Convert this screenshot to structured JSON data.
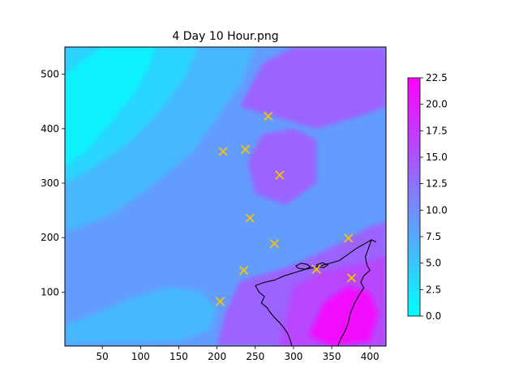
{
  "chart_data": {
    "type": "heatmap",
    "title": "4 Day 10 Hour.png",
    "xlabel": "",
    "ylabel": "",
    "xlim": [
      1,
      421
    ],
    "ylim": [
      1,
      550
    ],
    "x_ticks": [
      50,
      100,
      150,
      200,
      250,
      300,
      350,
      400
    ],
    "y_ticks": [
      100,
      200,
      300,
      400,
      500
    ],
    "colorbar": {
      "min": 0,
      "max": 22.5,
      "ticks": [
        0.0,
        2.5,
        5.0,
        7.5,
        10.0,
        12.5,
        15.0,
        17.5,
        20.0,
        22.5
      ],
      "tick_labels": [
        "0.0",
        "2.5",
        "5.0",
        "7.5",
        "10.0",
        "12.5",
        "15.0",
        "17.5",
        "20.0",
        "22.5"
      ],
      "colormap": "cool",
      "color_low": "#00ffff",
      "color_high": "#ff00ff"
    },
    "markers": {
      "symbol": "x",
      "color": "#f5c400",
      "points": [
        {
          "x": 267,
          "y": 423
        },
        {
          "x": 208,
          "y": 358
        },
        {
          "x": 237,
          "y": 362
        },
        {
          "x": 282,
          "y": 315
        },
        {
          "x": 243,
          "y": 236
        },
        {
          "x": 275,
          "y": 189
        },
        {
          "x": 372,
          "y": 199
        },
        {
          "x": 235,
          "y": 140
        },
        {
          "x": 330,
          "y": 142
        },
        {
          "x": 376,
          "y": 126
        },
        {
          "x": 204,
          "y": 83
        }
      ]
    },
    "field_regions": [
      {
        "value": 9.5,
        "polygon": [
          [
            1,
            1
          ],
          [
            421,
            1
          ],
          [
            421,
            550
          ],
          [
            1,
            550
          ]
        ]
      },
      {
        "value": 6.5,
        "polygon": [
          [
            1,
            210
          ],
          [
            60,
            240
          ],
          [
            120,
            300
          ],
          [
            170,
            360
          ],
          [
            200,
            420
          ],
          [
            230,
            480
          ],
          [
            250,
            550
          ],
          [
            1,
            550
          ]
        ]
      },
      {
        "value": 3.5,
        "polygon": [
          [
            1,
            300
          ],
          [
            40,
            330
          ],
          [
            90,
            380
          ],
          [
            130,
            440
          ],
          [
            160,
            500
          ],
          [
            175,
            550
          ],
          [
            1,
            550
          ]
        ]
      },
      {
        "value": 1.2,
        "polygon": [
          [
            1,
            330
          ],
          [
            30,
            360
          ],
          [
            60,
            410
          ],
          [
            90,
            460
          ],
          [
            110,
            510
          ],
          [
            120,
            550
          ],
          [
            50,
            550
          ],
          [
            1,
            500
          ]
        ]
      },
      {
        "value": 6.8,
        "polygon": [
          [
            1,
            40
          ],
          [
            40,
            60
          ],
          [
            90,
            90
          ],
          [
            140,
            110
          ],
          [
            180,
            100
          ],
          [
            200,
            70
          ],
          [
            190,
            30
          ],
          [
            150,
            10
          ],
          [
            1,
            5
          ]
        ]
      },
      {
        "value": 13.0,
        "polygon": [
          [
            230,
            440
          ],
          [
            280,
            420
          ],
          [
            330,
            400
          ],
          [
            380,
            420
          ],
          [
            421,
            440
          ],
          [
            421,
            550
          ],
          [
            300,
            550
          ],
          [
            260,
            520
          ]
        ]
      },
      {
        "value": 13.5,
        "polygon": [
          [
            250,
            280
          ],
          [
            290,
            260
          ],
          [
            330,
            300
          ],
          [
            330,
            380
          ],
          [
            300,
            400
          ],
          [
            260,
            390
          ],
          [
            240,
            340
          ]
        ]
      },
      {
        "value": 14.0,
        "polygon": [
          [
            360,
            440
          ],
          [
            410,
            450
          ],
          [
            421,
            480
          ],
          [
            421,
            530
          ],
          [
            380,
            520
          ],
          [
            350,
            480
          ]
        ]
      },
      {
        "value": 12.5,
        "polygon": [
          [
            230,
            120
          ],
          [
            300,
            150
          ],
          [
            360,
            190
          ],
          [
            400,
            220
          ],
          [
            421,
            230
          ],
          [
            421,
            1
          ],
          [
            200,
            1
          ],
          [
            210,
            60
          ]
        ]
      },
      {
        "value": 17.0,
        "polygon": [
          [
            300,
            110
          ],
          [
            340,
            140
          ],
          [
            380,
            150
          ],
          [
            410,
            160
          ],
          [
            421,
            170
          ],
          [
            421,
            1
          ],
          [
            280,
            1
          ],
          [
            290,
            50
          ]
        ]
      },
      {
        "value": 20.5,
        "polygon": [
          [
            320,
            20
          ],
          [
            340,
            80
          ],
          [
            370,
            110
          ],
          [
            400,
            100
          ],
          [
            410,
            60
          ],
          [
            400,
            10
          ],
          [
            350,
            1
          ]
        ]
      }
    ],
    "coastline": [
      [
        [
          250,
          112
        ],
        [
          262,
          118
        ],
        [
          275,
          122
        ],
        [
          288,
          130
        ],
        [
          300,
          135
        ],
        [
          316,
          142
        ],
        [
          330,
          146
        ],
        [
          345,
          152
        ],
        [
          360,
          158
        ],
        [
          372,
          170
        ],
        [
          382,
          180
        ],
        [
          392,
          188
        ],
        [
          402,
          196
        ],
        [
          408,
          192
        ]
      ],
      [
        [
          402,
          196
        ],
        [
          398,
          180
        ],
        [
          394,
          165
        ],
        [
          396,
          150
        ],
        [
          400,
          140
        ],
        [
          392,
          130
        ],
        [
          388,
          118
        ],
        [
          392,
          108
        ],
        [
          386,
          95
        ],
        [
          380,
          80
        ],
        [
          374,
          60
        ],
        [
          372,
          45
        ],
        [
          368,
          30
        ],
        [
          362,
          15
        ],
        [
          358,
          1
        ]
      ],
      [
        [
          250,
          112
        ],
        [
          255,
          100
        ],
        [
          262,
          92
        ],
        [
          258,
          80
        ],
        [
          265,
          72
        ],
        [
          270,
          62
        ],
        [
          276,
          52
        ],
        [
          282,
          44
        ],
        [
          287,
          35
        ],
        [
          292,
          25
        ],
        [
          295,
          15
        ],
        [
          298,
          1
        ]
      ],
      [
        [
          303,
          148
        ],
        [
          310,
          153
        ],
        [
          318,
          151
        ],
        [
          322,
          146
        ],
        [
          315,
          142
        ],
        [
          306,
          144
        ],
        [
          303,
          148
        ]
      ],
      [
        [
          330,
          150
        ],
        [
          338,
          154
        ],
        [
          345,
          150
        ],
        [
          340,
          145
        ],
        [
          332,
          146
        ],
        [
          330,
          150
        ]
      ]
    ]
  }
}
